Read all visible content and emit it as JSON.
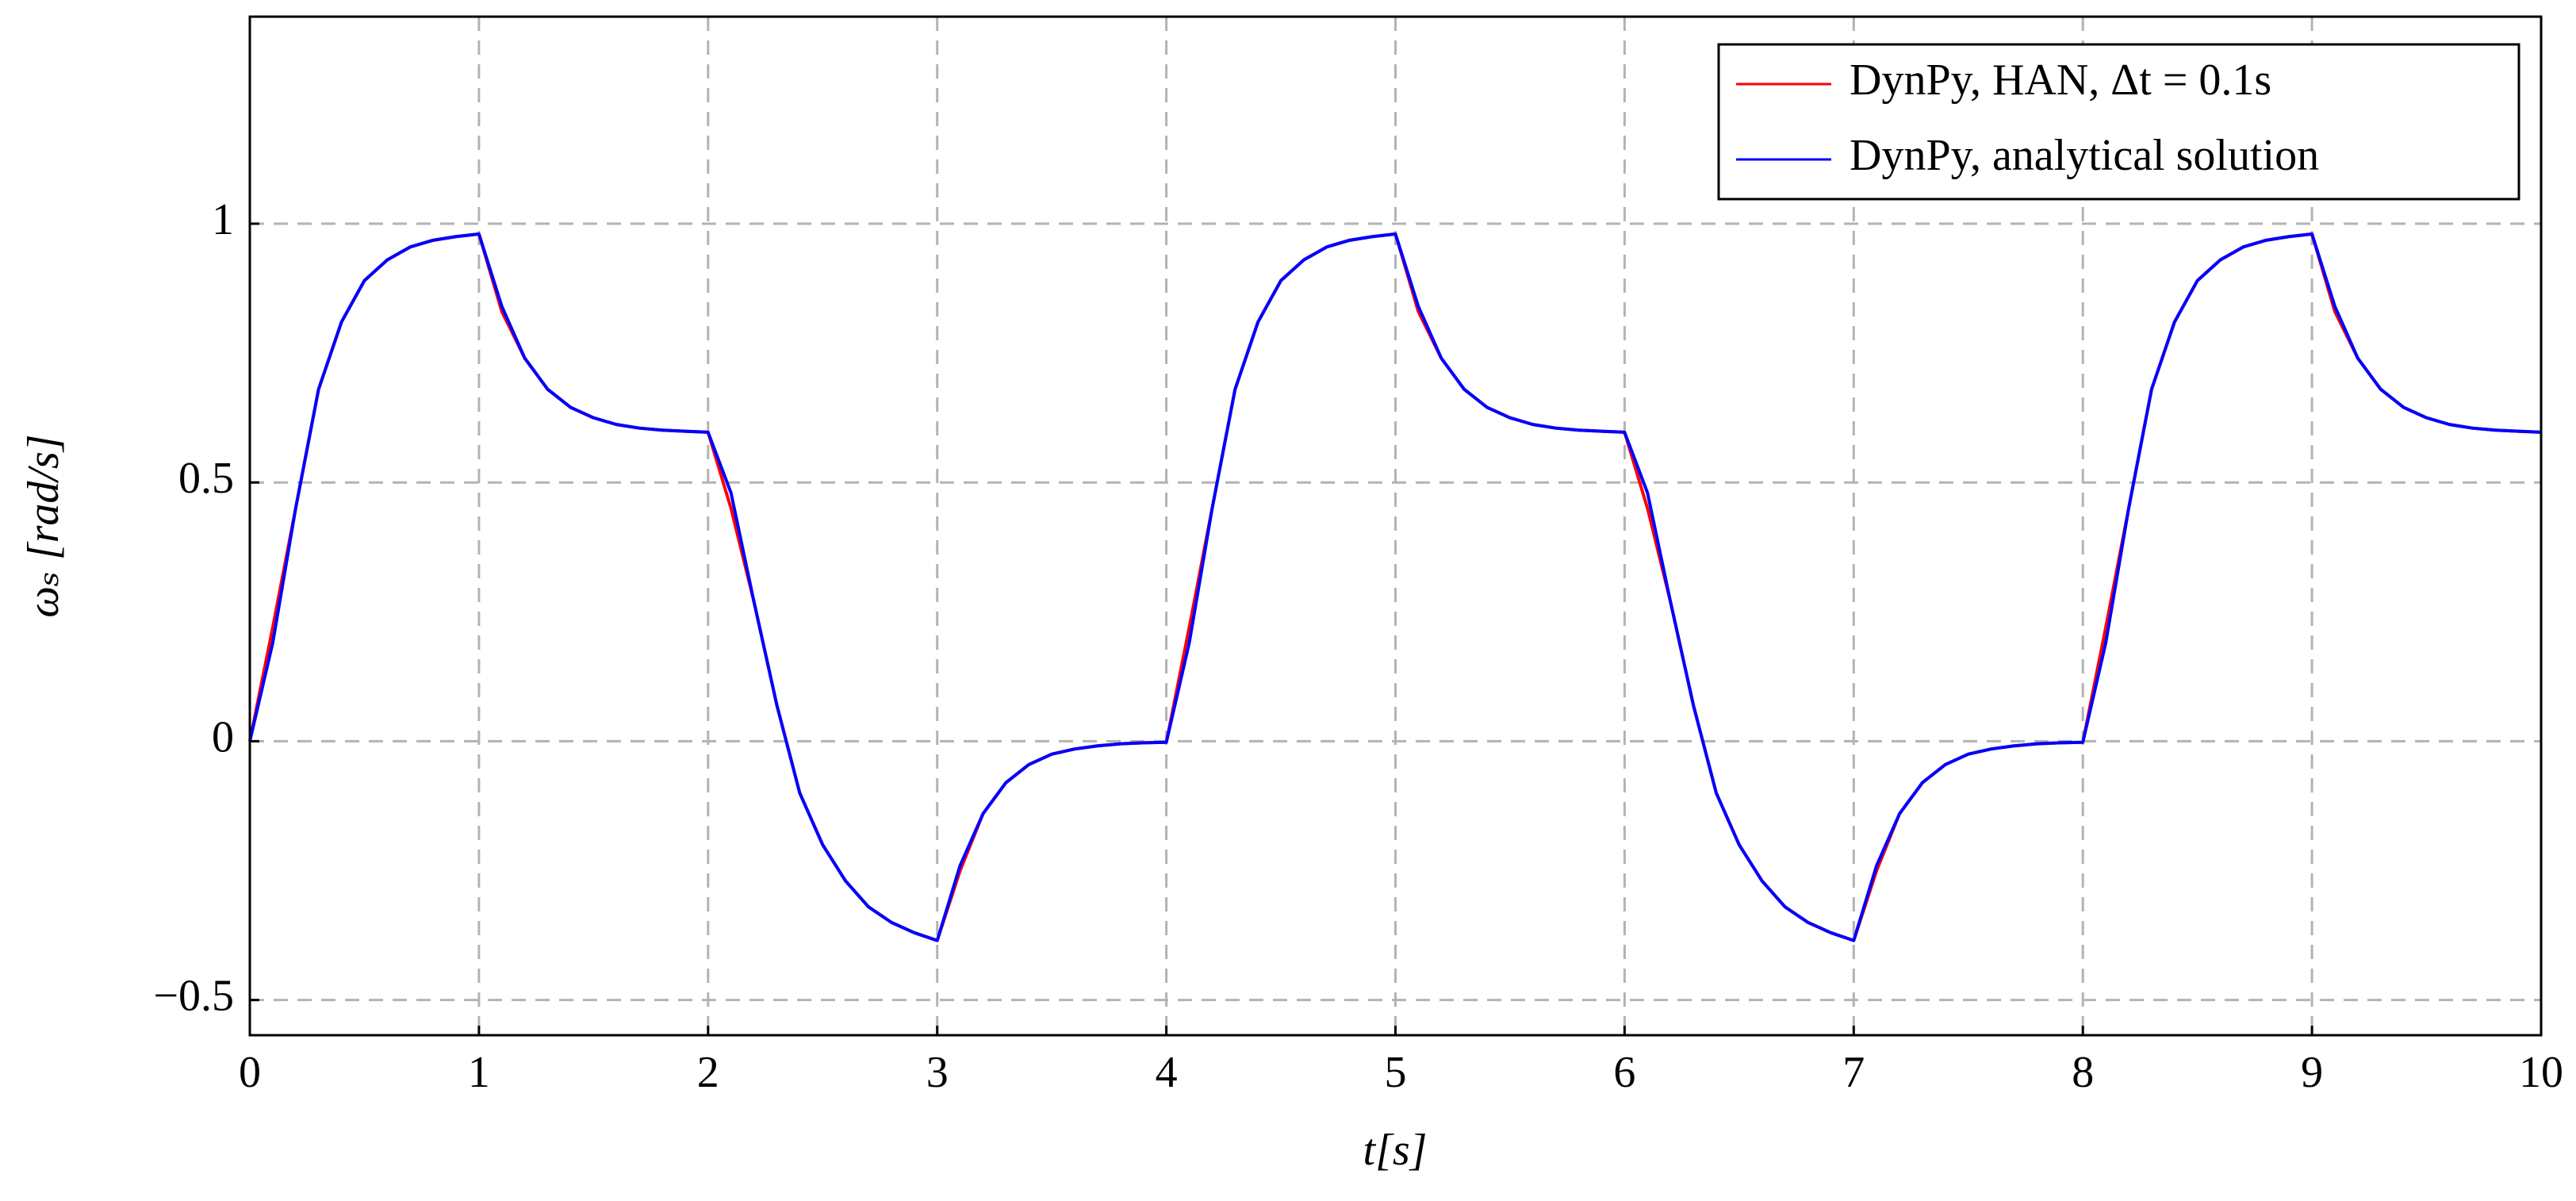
{
  "chart_data": {
    "type": "line",
    "x_label": "t[s]",
    "y_label": "ωₛ [rad/s]",
    "x": [
      0,
      0.1,
      0.2,
      0.3,
      0.4,
      0.5,
      0.6,
      0.7,
      0.8,
      0.9,
      1,
      1.1,
      1.2,
      1.3,
      1.4,
      1.5,
      1.6,
      1.7,
      1.8,
      1.9,
      2,
      2.1,
      2.2,
      2.3,
      2.4,
      2.5,
      2.6,
      2.7,
      2.8,
      2.9,
      3,
      3.1,
      3.2,
      3.3,
      3.4,
      3.5,
      3.6,
      3.7,
      3.8,
      3.9,
      4,
      4.1,
      4.2,
      4.3,
      4.4,
      4.5,
      4.6,
      4.7,
      4.8,
      4.9,
      5,
      5.1,
      5.2,
      5.3,
      5.4,
      5.5,
      5.6,
      5.7,
      5.8,
      5.9,
      6,
      6.1,
      6.2,
      6.3,
      6.4,
      6.5,
      6.6,
      6.7,
      6.8,
      6.9,
      7,
      7.1,
      7.2,
      7.3,
      7.4,
      7.5,
      7.6,
      7.7,
      7.8,
      7.9,
      8,
      8.1,
      8.2,
      8.3,
      8.4,
      8.5,
      8.6,
      8.7,
      8.8,
      8.9,
      9,
      9.1,
      9.2,
      9.3,
      9.4,
      9.5,
      9.6,
      9.7,
      9.8,
      9.9,
      10
    ],
    "series": [
      {
        "name": "DynPy, HAN, Δt = 0.1s",
        "color": "#ff0000",
        "values": [
          0,
          0.22,
          0.45,
          0.68,
          0.81,
          0.89,
          0.93,
          0.955,
          0.968,
          0.975,
          0.98,
          0.83,
          0.74,
          0.68,
          0.645,
          0.625,
          0.612,
          0.605,
          0.601,
          0.599,
          0.597,
          0.45,
          0.27,
          0.07,
          -0.1,
          -0.2,
          -0.27,
          -0.32,
          -0.35,
          -0.37,
          -0.385,
          -0.25,
          -0.14,
          -0.08,
          -0.045,
          -0.025,
          -0.015,
          -0.009,
          -0.005,
          -0.003,
          -0.002,
          0.22,
          0.45,
          0.68,
          0.81,
          0.89,
          0.93,
          0.955,
          0.968,
          0.975,
          0.98,
          0.83,
          0.74,
          0.68,
          0.645,
          0.625,
          0.612,
          0.605,
          0.601,
          0.599,
          0.597,
          0.45,
          0.27,
          0.07,
          -0.1,
          -0.2,
          -0.27,
          -0.32,
          -0.35,
          -0.37,
          -0.385,
          -0.25,
          -0.14,
          -0.08,
          -0.045,
          -0.025,
          -0.015,
          -0.009,
          -0.005,
          -0.003,
          -0.002,
          0.22,
          0.45,
          0.68,
          0.81,
          0.89,
          0.93,
          0.955,
          0.968,
          0.975,
          0.98,
          0.83,
          0.74,
          0.68,
          0.645,
          0.625,
          0.612,
          0.605,
          0.601,
          0.599,
          0.597
        ]
      },
      {
        "name": "DynPy, analytical solution",
        "color": "#0000ff",
        "values": [
          0,
          0.19,
          0.45,
          0.68,
          0.81,
          0.89,
          0.93,
          0.955,
          0.968,
          0.975,
          0.98,
          0.84,
          0.74,
          0.68,
          0.645,
          0.625,
          0.612,
          0.605,
          0.601,
          0.599,
          0.597,
          0.48,
          0.27,
          0.07,
          -0.1,
          -0.2,
          -0.27,
          -0.32,
          -0.35,
          -0.37,
          -0.385,
          -0.24,
          -0.14,
          -0.08,
          -0.045,
          -0.025,
          -0.015,
          -0.009,
          -0.005,
          -0.003,
          -0.002,
          0.19,
          0.45,
          0.68,
          0.81,
          0.89,
          0.93,
          0.955,
          0.968,
          0.975,
          0.98,
          0.84,
          0.74,
          0.68,
          0.645,
          0.625,
          0.612,
          0.605,
          0.601,
          0.599,
          0.597,
          0.48,
          0.27,
          0.07,
          -0.1,
          -0.2,
          -0.27,
          -0.32,
          -0.35,
          -0.37,
          -0.385,
          -0.24,
          -0.14,
          -0.08,
          -0.045,
          -0.025,
          -0.015,
          -0.009,
          -0.005,
          -0.003,
          -0.002,
          0.19,
          0.45,
          0.68,
          0.81,
          0.89,
          0.93,
          0.955,
          0.968,
          0.975,
          0.98,
          0.84,
          0.74,
          0.68,
          0.645,
          0.625,
          0.612,
          0.605,
          0.601,
          0.599,
          0.597
        ]
      }
    ],
    "xlim": [
      0,
      10
    ],
    "xticks": [
      0,
      1,
      2,
      3,
      4,
      5,
      6,
      7,
      8,
      9,
      10
    ],
    "ylim": [
      -0.568,
      1.4
    ],
    "yticks": [
      {
        "value": -0.5,
        "label": "−0.5"
      },
      0,
      0.5,
      1
    ],
    "grid": true,
    "legend": "upper right"
  }
}
